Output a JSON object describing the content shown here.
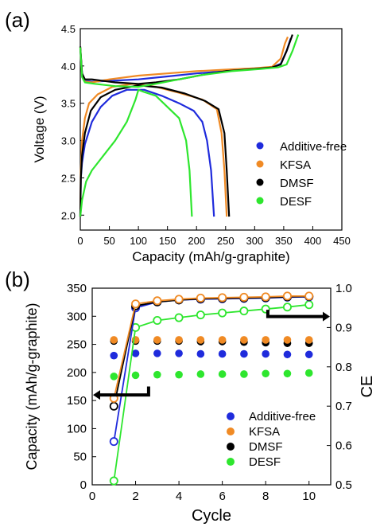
{
  "colors": {
    "additive_free": "#1f2bdc",
    "kfsa": "#f08a24",
    "dmsf": "#000000",
    "desf": "#2ee62e"
  },
  "chart_data": [
    {
      "panel": "(a)",
      "type": "line",
      "xlabel": "Capacity (mAh/g-graphite)",
      "ylabel": "Voltage (V)",
      "xlim": [
        0,
        450
      ],
      "ylim": [
        1.8,
        4.5
      ],
      "xticks": [
        0,
        50,
        100,
        150,
        200,
        250,
        300,
        350,
        400,
        450
      ],
      "yticks": [
        2.0,
        2.5,
        3.0,
        3.5,
        4.0,
        4.5
      ],
      "legend": {
        "position": "center-right",
        "entries": [
          "Additive-free",
          "KFSA",
          "DMSF",
          "DESF"
        ]
      },
      "series": [
        {
          "name": "Additive-free",
          "color_key": "additive_free",
          "charge": [
            [
              0,
              4.23
            ],
            [
              3,
              3.9
            ],
            [
              8,
              3.8
            ],
            [
              20,
              3.79
            ],
            [
              50,
              3.8
            ],
            [
              100,
              3.82
            ],
            [
              150,
              3.86
            ],
            [
              200,
              3.9
            ],
            [
              250,
              3.93
            ],
            [
              300,
              3.96
            ],
            [
              330,
              3.98
            ],
            [
              345,
              4.03
            ],
            [
              355,
              4.2
            ],
            [
              362,
              4.37
            ]
          ],
          "discharge": [
            [
              0,
              1.98
            ],
            [
              1,
              2.5
            ],
            [
              3,
              2.7
            ],
            [
              8,
              2.95
            ],
            [
              20,
              3.25
            ],
            [
              35,
              3.45
            ],
            [
              55,
              3.6
            ],
            [
              80,
              3.68
            ],
            [
              110,
              3.68
            ],
            [
              140,
              3.6
            ],
            [
              170,
              3.5
            ],
            [
              195,
              3.4
            ],
            [
              210,
              3.25
            ],
            [
              218,
              3.0
            ],
            [
              225,
              2.6
            ],
            [
              230,
              1.98
            ]
          ]
        },
        {
          "name": "KFSA",
          "color_key": "kfsa",
          "charge": [
            [
              0,
              4.25
            ],
            [
              3,
              3.88
            ],
            [
              8,
              3.79
            ],
            [
              20,
              3.78
            ],
            [
              50,
              3.82
            ],
            [
              100,
              3.87
            ],
            [
              150,
              3.9
            ],
            [
              200,
              3.93
            ],
            [
              250,
              3.95
            ],
            [
              300,
              3.97
            ],
            [
              330,
              3.99
            ],
            [
              345,
              4.1
            ],
            [
              352,
              4.3
            ],
            [
              357,
              4.39
            ]
          ],
          "discharge": [
            [
              0,
              1.98
            ],
            [
              1,
              2.6
            ],
            [
              3,
              3.0
            ],
            [
              8,
              3.3
            ],
            [
              15,
              3.5
            ],
            [
              30,
              3.62
            ],
            [
              55,
              3.72
            ],
            [
              90,
              3.76
            ],
            [
              130,
              3.72
            ],
            [
              170,
              3.64
            ],
            [
              210,
              3.55
            ],
            [
              235,
              3.42
            ],
            [
              243,
              3.1
            ],
            [
              248,
              2.6
            ],
            [
              252,
              1.98
            ]
          ]
        },
        {
          "name": "DMSF",
          "color_key": "dmsf",
          "charge": [
            [
              0,
              4.26
            ],
            [
              3,
              3.9
            ],
            [
              8,
              3.82
            ],
            [
              20,
              3.82
            ],
            [
              60,
              3.78
            ],
            [
              100,
              3.76
            ],
            [
              130,
              3.78
            ],
            [
              170,
              3.82
            ],
            [
              210,
              3.88
            ],
            [
              250,
              3.93
            ],
            [
              300,
              3.96
            ],
            [
              330,
              3.98
            ],
            [
              345,
              4.02
            ],
            [
              355,
              4.2
            ],
            [
              365,
              4.42
            ]
          ],
          "discharge": [
            [
              0,
              1.98
            ],
            [
              1,
              2.5
            ],
            [
              3,
              2.8
            ],
            [
              8,
              3.1
            ],
            [
              18,
              3.4
            ],
            [
              35,
              3.58
            ],
            [
              60,
              3.68
            ],
            [
              100,
              3.74
            ],
            [
              140,
              3.71
            ],
            [
              180,
              3.63
            ],
            [
              215,
              3.53
            ],
            [
              238,
              3.42
            ],
            [
              248,
              3.1
            ],
            [
              252,
              2.6
            ],
            [
              256,
              1.98
            ]
          ]
        },
        {
          "name": "DESF",
          "color_key": "desf",
          "charge": [
            [
              0,
              4.25
            ],
            [
              3,
              3.85
            ],
            [
              8,
              3.78
            ],
            [
              25,
              3.76
            ],
            [
              60,
              3.73
            ],
            [
              100,
              3.72
            ],
            [
              130,
              3.76
            ],
            [
              170,
              3.82
            ],
            [
              210,
              3.88
            ],
            [
              260,
              3.93
            ],
            [
              310,
              3.96
            ],
            [
              340,
              3.98
            ],
            [
              355,
              4.02
            ],
            [
              365,
              4.2
            ],
            [
              375,
              4.42
            ]
          ],
          "discharge": [
            [
              0,
              1.98
            ],
            [
              3,
              2.2
            ],
            [
              10,
              2.45
            ],
            [
              20,
              2.6
            ],
            [
              40,
              2.8
            ],
            [
              60,
              3.0
            ],
            [
              80,
              3.25
            ],
            [
              95,
              3.55
            ],
            [
              100,
              3.68
            ],
            [
              110,
              3.65
            ],
            [
              130,
              3.6
            ],
            [
              150,
              3.45
            ],
            [
              170,
              3.3
            ],
            [
              182,
              3.0
            ],
            [
              188,
              2.6
            ],
            [
              192,
              1.98
            ]
          ]
        }
      ]
    },
    {
      "panel": "(b)",
      "type": "scatter",
      "xlabel": "Cycle",
      "ylabel": "Capacity (mAh/g-graphite)",
      "y2label": "CE",
      "xlim": [
        0,
        11
      ],
      "ylim": [
        0,
        350
      ],
      "y2lim": [
        0.5,
        1.0
      ],
      "xticks": [
        0,
        2,
        4,
        6,
        8,
        10
      ],
      "yticks": [
        0,
        50,
        100,
        150,
        200,
        250,
        300,
        350
      ],
      "y2ticks": [
        0.5,
        0.6,
        0.7,
        0.8,
        0.9,
        1.0
      ],
      "legend": {
        "position": "bottom-right",
        "entries": [
          "Additive-free",
          "KFSA",
          "DMSF",
          "DESF"
        ]
      },
      "x": [
        1,
        2,
        3,
        4,
        5,
        6,
        7,
        8,
        9,
        10
      ],
      "series": [
        {
          "name": "Additive-free",
          "color_key": "additive_free",
          "capacity": [
            230,
            234,
            234,
            234,
            233,
            233,
            233,
            233,
            232,
            232
          ],
          "ce": [
            0.61,
            0.95,
            0.965,
            0.97,
            0.972,
            0.973,
            0.974,
            0.975,
            0.977,
            0.978
          ]
        },
        {
          "name": "KFSA",
          "color_key": "kfsa",
          "capacity": [
            258,
            258,
            258,
            258,
            258,
            258,
            258,
            258,
            258,
            258
          ],
          "ce": [
            0.72,
            0.96,
            0.968,
            0.972,
            0.975,
            0.976,
            0.977,
            0.978,
            0.98,
            0.98
          ]
        },
        {
          "name": "DMSF",
          "color_key": "dmsf",
          "capacity": [
            256,
            256,
            256,
            256,
            255,
            255,
            254,
            253,
            252,
            252
          ],
          "ce": [
            0.7,
            0.955,
            0.965,
            0.97,
            0.973,
            0.974,
            0.975,
            0.976,
            0.978,
            0.979
          ]
        },
        {
          "name": "DESF",
          "color_key": "desf",
          "capacity": [
            193,
            195,
            196,
            196,
            197,
            197,
            197,
            198,
            198,
            199
          ],
          "ce": [
            0.51,
            0.9,
            0.918,
            0.925,
            0.932,
            0.937,
            0.942,
            0.947,
            0.952,
            0.958
          ]
        }
      ]
    }
  ]
}
